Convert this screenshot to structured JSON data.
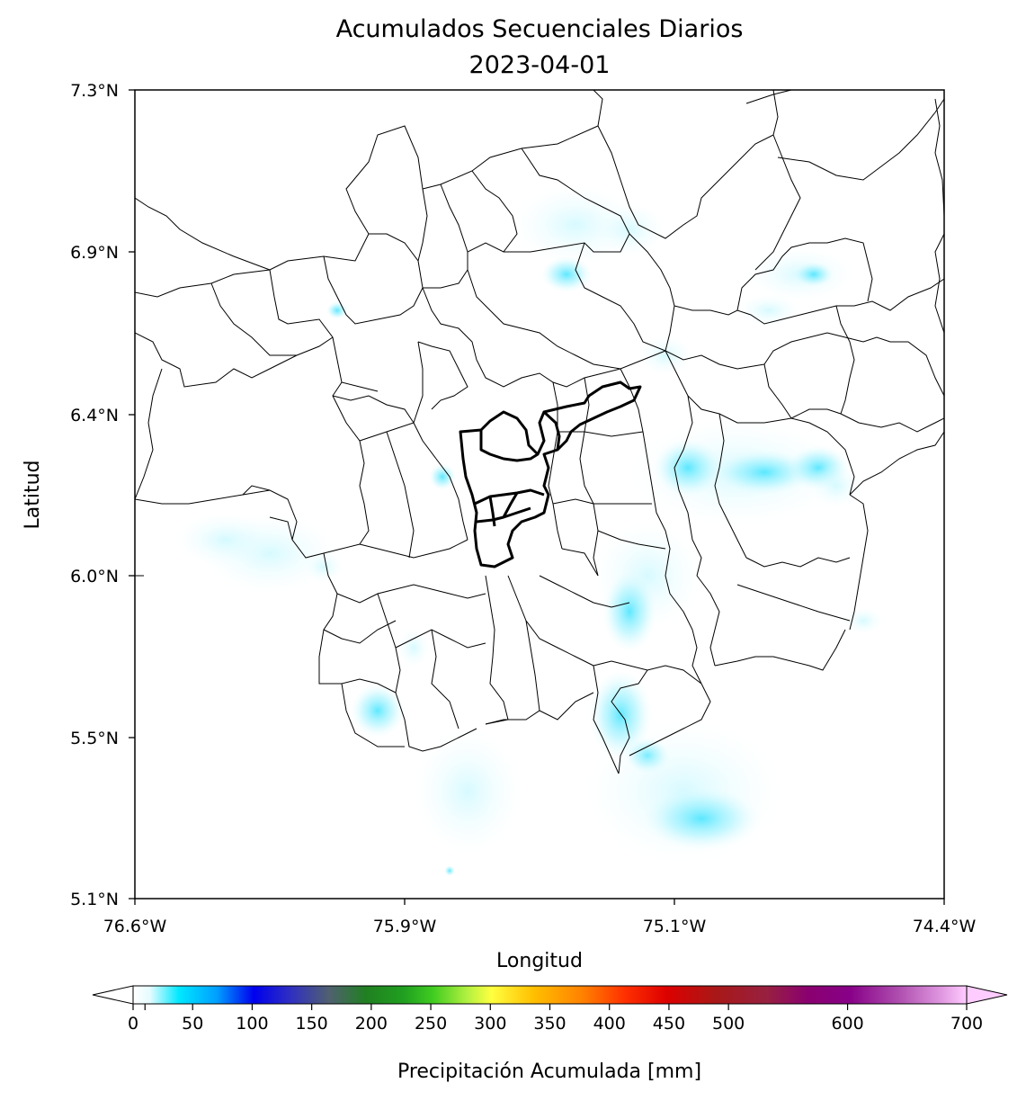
{
  "title": "Acumulados Secuenciales Diarios",
  "date": "2023-04-01",
  "xlabel": "Longitud",
  "ylabel": "Latitud",
  "lon_ticks": [
    "76.6°W",
    "75.9°W",
    "75.1°W",
    "74.4°W"
  ],
  "lat_ticks": [
    "7.3°N",
    "6.9°N",
    "6.4°N",
    "6.0°N",
    "5.5°N",
    "5.1°N"
  ],
  "colorbar": {
    "label": "Precipitación Acumulada [mm]",
    "ticks": [
      "0",
      "50",
      "100",
      "150",
      "200",
      "250",
      "300",
      "350",
      "400",
      "450",
      "500",
      "600",
      "700"
    ],
    "tick_values": [
      0,
      50,
      100,
      150,
      200,
      250,
      300,
      350,
      400,
      450,
      500,
      600,
      700
    ],
    "extend": "both"
  },
  "colors": {
    "light_rain": "#9ff3ff",
    "moderate_rain": "#2ae0ff",
    "boundary": "#000000"
  }
}
